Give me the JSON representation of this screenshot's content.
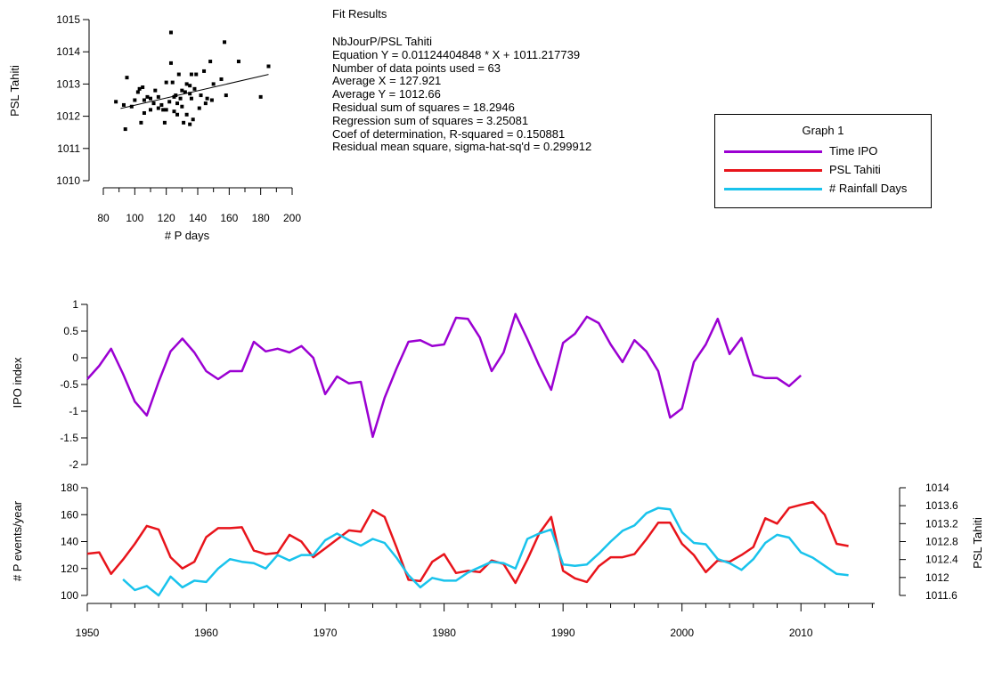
{
  "fit_results": {
    "title": "Fit Results",
    "lines": [
      "NbJourP/PSL Tahiti",
      "Equation Y = 0.01124404848 * X + 1011.217739",
      "Number of data points used = 63",
      "Average X = 127.921",
      "Average Y = 1012.66",
      "Residual sum of squares = 18.2946",
      "Regression sum of squares = 3.25081",
      "Coef of determination, R-squared = 0.150881",
      "Residual mean square, sigma-hat-sq'd = 0.299912"
    ]
  },
  "legend": {
    "title": "Graph 1",
    "entries": [
      {
        "label": "Time IPO",
        "color": "#9B00D2"
      },
      {
        "label": "PSL Tahiti",
        "color": "#E8141B"
      },
      {
        "label": "# Rainfall Days",
        "color": "#19C3EC"
      }
    ]
  },
  "chart_data": [
    {
      "type": "scatter",
      "xlabel": "# P days",
      "ylabel": "PSL Tahiti",
      "xlim": [
        80,
        200
      ],
      "ylim": [
        1010,
        1015
      ],
      "xticks": [
        80,
        100,
        120,
        140,
        160,
        180,
        200
      ],
      "yticks": [
        1010,
        1011,
        1012,
        1013,
        1014,
        1015
      ],
      "fit_line": {
        "slope": 0.01124404848,
        "intercept": 1011.217739,
        "x_range": [
          91,
          185
        ]
      },
      "points": [
        [
          88,
          1012.45
        ],
        [
          93,
          1012.35
        ],
        [
          94,
          1011.6
        ],
        [
          95,
          1013.2
        ],
        [
          98,
          1012.3
        ],
        [
          100,
          1012.5
        ],
        [
          102,
          1012.75
        ],
        [
          103,
          1012.85
        ],
        [
          104,
          1011.8
        ],
        [
          105,
          1012.9
        ],
        [
          106,
          1012.5
        ],
        [
          106,
          1012.1
        ],
        [
          108,
          1012.6
        ],
        [
          110,
          1012.55
        ],
        [
          110,
          1012.2
        ],
        [
          112,
          1012.4
        ],
        [
          113,
          1012.8
        ],
        [
          115,
          1012.6
        ],
        [
          115,
          1012.25
        ],
        [
          117,
          1012.35
        ],
        [
          118,
          1012.2
        ],
        [
          119,
          1011.8
        ],
        [
          120,
          1013.05
        ],
        [
          120,
          1012.2
        ],
        [
          122,
          1012.45
        ],
        [
          123,
          1014.6
        ],
        [
          123,
          1013.65
        ],
        [
          124,
          1013.05
        ],
        [
          125,
          1012.6
        ],
        [
          125,
          1012.15
        ],
        [
          126,
          1012.65
        ],
        [
          127,
          1012.4
        ],
        [
          127,
          1012.05
        ],
        [
          128,
          1013.3
        ],
        [
          129,
          1012.55
        ],
        [
          130,
          1012.3
        ],
        [
          130,
          1012.8
        ],
        [
          131,
          1011.8
        ],
        [
          132,
          1012.75
        ],
        [
          133,
          1013.0
        ],
        [
          133,
          1012.05
        ],
        [
          135,
          1012.95
        ],
        [
          135,
          1012.7
        ],
        [
          135,
          1011.75
        ],
        [
          136,
          1013.3
        ],
        [
          136,
          1012.55
        ],
        [
          137,
          1011.9
        ],
        [
          138,
          1012.85
        ],
        [
          139,
          1013.3
        ],
        [
          141,
          1012.25
        ],
        [
          142,
          1012.65
        ],
        [
          144,
          1013.4
        ],
        [
          145,
          1012.4
        ],
        [
          146,
          1012.55
        ],
        [
          148,
          1013.7
        ],
        [
          150,
          1013.0
        ],
        [
          155,
          1013.15
        ],
        [
          157,
          1014.3
        ],
        [
          158,
          1012.65
        ],
        [
          166,
          1013.7
        ],
        [
          180,
          1012.6
        ],
        [
          185,
          1013.55
        ],
        [
          149,
          1012.5
        ]
      ]
    },
    {
      "type": "line",
      "ylabel": "IPO index",
      "xlim": [
        1950,
        2015
      ],
      "ylim": [
        -2,
        1
      ],
      "yticks": [
        -2,
        -1.5,
        -1,
        -0.5,
        0,
        0.5,
        1
      ],
      "series": [
        {
          "name": "Time IPO",
          "color": "#9B00D2",
          "x": [
            1950,
            1951,
            1952,
            1953,
            1954,
            1955,
            1956,
            1957,
            1958,
            1959,
            1960,
            1961,
            1962,
            1963,
            1964,
            1965,
            1966,
            1967,
            1968,
            1969,
            1970,
            1971,
            1972,
            1973,
            1974,
            1975,
            1976,
            1977,
            1978,
            1979,
            1980,
            1981,
            1982,
            1983,
            1984,
            1985,
            1986,
            1987,
            1988,
            1989,
            1990,
            1991,
            1992,
            1993,
            1994,
            1995,
            1996,
            1997,
            1998,
            1999,
            2000,
            2001,
            2002,
            2003,
            2004,
            2005,
            2006,
            2007,
            2008,
            2009,
            2010
          ],
          "y": [
            -0.4,
            -0.15,
            0.17,
            -0.3,
            -0.82,
            -1.08,
            -0.45,
            0.12,
            0.36,
            0.1,
            -0.25,
            -0.4,
            -0.25,
            -0.25,
            0.3,
            0.12,
            0.17,
            0.1,
            0.22,
            0.0,
            -0.68,
            -0.35,
            -0.48,
            -0.45,
            -1.48,
            -0.75,
            -0.2,
            0.3,
            0.33,
            0.22,
            0.25,
            0.75,
            0.73,
            0.38,
            -0.25,
            0.1,
            0.82,
            0.35,
            -0.15,
            -0.6,
            0.28,
            0.45,
            0.77,
            0.65,
            0.25,
            -0.08,
            0.33,
            0.12,
            -0.25,
            -1.12,
            -0.95,
            -0.08,
            0.25,
            0.73,
            0.07,
            0.37,
            -0.32,
            -0.38,
            -0.38,
            -0.53,
            -0.33
          ]
        }
      ]
    },
    {
      "type": "line",
      "ylabel": "# P events/year",
      "y2label": "PSL Tahiti",
      "xlim": [
        1950,
        2015
      ],
      "xticks": [
        1950,
        1960,
        1970,
        1980,
        1990,
        2000,
        2010
      ],
      "ylim": [
        100,
        180
      ],
      "yticks": [
        100,
        120,
        140,
        160,
        180
      ],
      "y2lim": [
        1011.6,
        1014
      ],
      "y2ticks": [
        "1011.6",
        "1012",
        "1012.4",
        "1012.8",
        "1013.2",
        "1013.6",
        "1014"
      ],
      "series": [
        {
          "name": "PSL Tahiti",
          "color": "#E8141B",
          "axis": "right",
          "x": [
            1950,
            1951,
            1952,
            1953,
            1954,
            1955,
            1956,
            1957,
            1958,
            1959,
            1960,
            1961,
            1962,
            1963,
            1964,
            1965,
            1966,
            1967,
            1968,
            1969,
            1970,
            1971,
            1972,
            1973,
            1974,
            1975,
            1976,
            1977,
            1978,
            1979,
            1980,
            1981,
            1982,
            1983,
            1984,
            1985,
            1986,
            1987,
            1988,
            1989,
            1990,
            1991,
            1992,
            1993,
            1994,
            1995,
            1996,
            1997,
            1998,
            1999,
            2000,
            2001,
            2002,
            2003,
            2004,
            2005,
            2006,
            2007,
            2008,
            2009,
            2010,
            2011,
            2012,
            2013,
            2014
          ],
          "y": [
            1012.53,
            1012.56,
            1012.08,
            1012.4,
            1012.75,
            1013.15,
            1013.07,
            1012.45,
            1012.2,
            1012.35,
            1012.9,
            1013.1,
            1013.1,
            1013.12,
            1012.6,
            1012.52,
            1012.55,
            1012.95,
            1012.8,
            1012.45,
            1012.65,
            1012.85,
            1013.05,
            1013.02,
            1013.5,
            1013.35,
            1012.67,
            1011.95,
            1011.92,
            1012.35,
            1012.52,
            1012.1,
            1012.15,
            1012.12,
            1012.38,
            1012.3,
            1011.88,
            1012.4,
            1012.98,
            1013.35,
            1012.15,
            1011.98,
            1011.9,
            1012.25,
            1012.45,
            1012.45,
            1012.52,
            1012.85,
            1013.22,
            1013.22,
            1012.75,
            1012.5,
            1012.12,
            1012.38,
            1012.35,
            1012.5,
            1012.68,
            1013.32,
            1013.2,
            1013.55,
            1013.62,
            1013.68,
            1013.4,
            1012.75,
            1012.7
          ]
        },
        {
          "name": "# Rainfall Days",
          "color": "#19C3EC",
          "axis": "left",
          "x": [
            1953,
            1954,
            1955,
            1956,
            1957,
            1958,
            1959,
            1960,
            1961,
            1962,
            1963,
            1964,
            1965,
            1966,
            1967,
            1968,
            1969,
            1970,
            1971,
            1972,
            1973,
            1974,
            1975,
            1976,
            1977,
            1978,
            1979,
            1980,
            1981,
            1982,
            1983,
            1984,
            1985,
            1986,
            1987,
            1988,
            1989,
            1990,
            1991,
            1992,
            1993,
            1994,
            1995,
            1996,
            1997,
            1998,
            1999,
            2000,
            2001,
            2002,
            2003,
            2004,
            2005,
            2006,
            2007,
            2008,
            2009,
            2010,
            2011,
            2012,
            2013,
            2014
          ],
          "y": [
            112,
            104,
            107,
            100,
            114,
            106,
            111,
            110,
            120,
            127,
            125,
            124,
            120,
            130,
            126,
            130,
            130,
            141,
            146,
            141,
            137,
            142,
            139,
            128,
            115,
            106,
            113,
            111,
            111,
            117,
            121,
            125,
            124,
            120,
            142,
            146,
            149,
            123,
            122,
            123,
            131,
            140,
            148,
            152,
            161,
            165,
            164,
            147,
            139,
            138,
            127,
            124,
            119,
            127,
            139,
            145,
            143,
            132,
            128,
            122,
            116,
            115
          ]
        }
      ]
    }
  ]
}
